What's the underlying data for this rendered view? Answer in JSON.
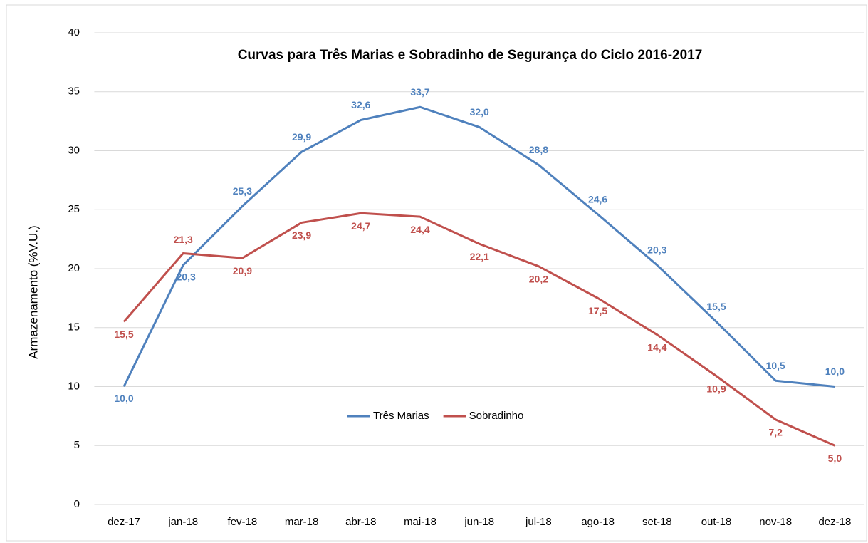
{
  "chart_data": {
    "type": "line",
    "title": "Curvas para Três Marias e Sobradinho de Segurança do Ciclo 2016-2017",
    "y_label": "Armazenamento (%V.U.)",
    "categories": [
      "dez-17",
      "jan-18",
      "fev-18",
      "mar-18",
      "abr-18",
      "mai-18",
      "jun-18",
      "jul-18",
      "ago-18",
      "set-18",
      "out-18",
      "nov-18",
      "dez-18"
    ],
    "series": [
      {
        "name": "Três Marias",
        "color": "#4f81bd",
        "values": [
          10.0,
          20.3,
          25.3,
          29.9,
          32.6,
          33.7,
          32.0,
          28.8,
          24.6,
          20.3,
          15.5,
          10.5,
          10.0
        ],
        "value_labels": [
          "10,0",
          "20,3",
          "25,3",
          "29,9",
          "32,6",
          "33,7",
          "32,0",
          "28,8",
          "24,6",
          "20,3",
          "15,5",
          "10,5",
          "10,0"
        ]
      },
      {
        "name": "Sobradinho",
        "color": "#c0504d",
        "values": [
          15.5,
          21.3,
          20.9,
          23.9,
          24.7,
          24.4,
          22.1,
          20.2,
          17.5,
          14.4,
          10.9,
          7.2,
          5.0
        ],
        "value_labels": [
          "15,5",
          "21,3",
          "20,9",
          "23,9",
          "24,7",
          "24,4",
          "22,1",
          "20,2",
          "17,5",
          "14,4",
          "10,9",
          "7,2",
          "5,0"
        ]
      }
    ],
    "ylim": [
      0,
      40
    ],
    "yticks": [
      0,
      5,
      10,
      15,
      20,
      25,
      30,
      35,
      40
    ],
    "grid": true,
    "legend": "center"
  }
}
